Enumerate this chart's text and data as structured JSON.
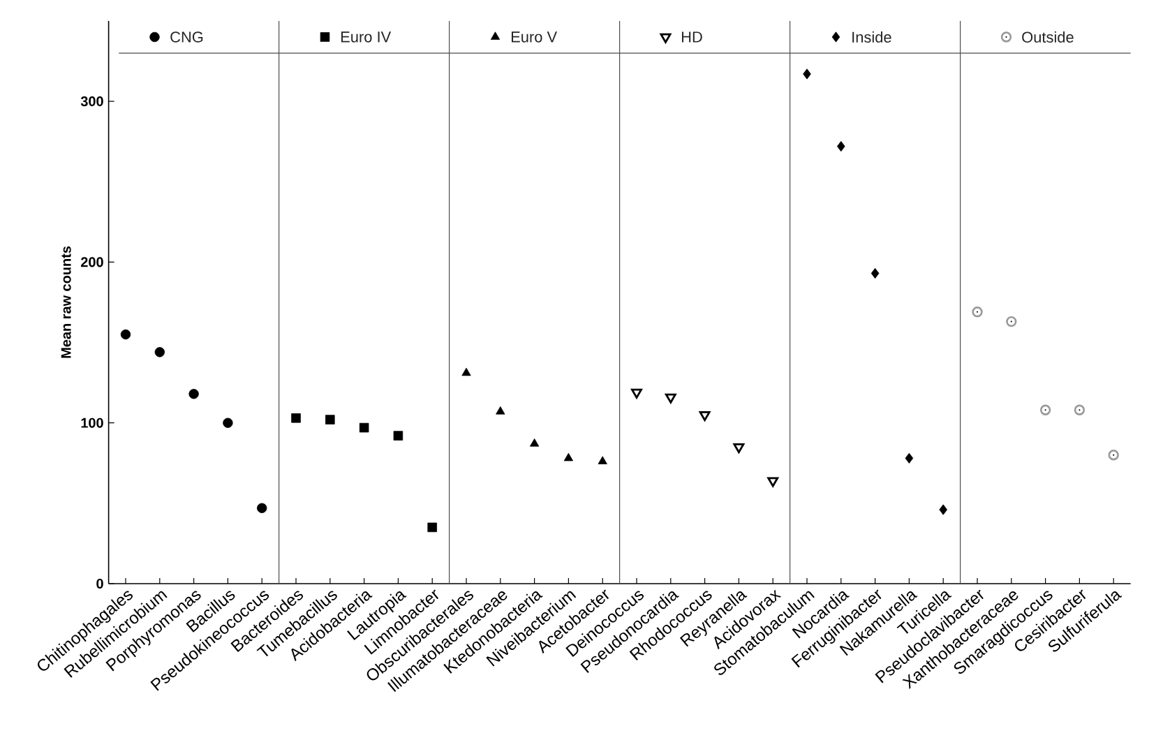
{
  "chart_data": {
    "type": "scatter",
    "ylabel": "Mean raw counts",
    "categories": [
      "Chitinophagales",
      "Rubellimicrobium",
      "Porphyromonas",
      "Bacillus",
      "Pseudokineococcus",
      "Bacteroides",
      "Tumebacillus",
      "Acidobacteria",
      "Lautropia",
      "Limnobacter",
      "Obscuribacterales",
      "Illumatobacteraceae",
      "Ktedonobacteria",
      "Niveibacterium",
      "Acetobacter",
      "Deinococcus",
      "Pseudonocardia",
      "Rhodococcus",
      "Reyranella",
      "Acidovorax",
      "Stomatobaculum",
      "Nocardia",
      "Ferruginibacter",
      "Nakamurella",
      "Turicella",
      "Pseudoclavibacter",
      "Xanthobacteraceae",
      "Smaragdicoccus",
      "Cesiribacter",
      "Sulfuriferula"
    ],
    "series": [
      {
        "name": "CNG",
        "color": "#000000",
        "marker": "circle",
        "values": [
          155,
          144,
          118,
          100,
          47,
          null,
          null,
          null,
          null,
          null,
          null,
          null,
          null,
          null,
          null,
          null,
          null,
          null,
          null,
          null,
          null,
          null,
          null,
          null,
          null,
          null,
          null,
          null,
          null,
          null
        ]
      },
      {
        "name": "Euro IV",
        "color": "#000000",
        "marker": "square",
        "values": [
          null,
          null,
          null,
          null,
          null,
          103,
          102,
          97,
          92,
          35,
          null,
          null,
          null,
          null,
          null,
          null,
          null,
          null,
          null,
          null,
          null,
          null,
          null,
          null,
          null,
          null,
          null,
          null,
          null,
          null
        ]
      },
      {
        "name": "Euro V",
        "color": "#000000",
        "marker": "triangle",
        "values": [
          null,
          null,
          null,
          null,
          null,
          null,
          null,
          null,
          null,
          null,
          131,
          107,
          87,
          78,
          76,
          null,
          null,
          null,
          null,
          null,
          null,
          null,
          null,
          null,
          null,
          null,
          null,
          null,
          null,
          null
        ]
      },
      {
        "name": "HD",
        "color": "#000000",
        "marker": "triangle-down-open",
        "values": [
          null,
          null,
          null,
          null,
          null,
          null,
          null,
          null,
          null,
          null,
          null,
          null,
          null,
          null,
          null,
          119,
          116,
          105,
          85,
          64,
          null,
          null,
          null,
          null,
          null,
          null,
          null,
          null,
          null,
          null
        ]
      },
      {
        "name": "Inside",
        "color": "#000000",
        "marker": "diamond",
        "values": [
          null,
          null,
          null,
          null,
          null,
          null,
          null,
          null,
          null,
          null,
          null,
          null,
          null,
          null,
          null,
          null,
          null,
          null,
          null,
          null,
          317,
          272,
          193,
          78,
          46,
          null,
          null,
          null,
          null,
          null
        ]
      },
      {
        "name": "Outside",
        "color": "#999999",
        "marker": "circle-open",
        "values": [
          null,
          null,
          null,
          null,
          null,
          null,
          null,
          null,
          null,
          null,
          null,
          null,
          null,
          null,
          null,
          null,
          null,
          null,
          null,
          null,
          null,
          null,
          null,
          null,
          null,
          169,
          163,
          108,
          108,
          80
        ]
      }
    ],
    "ylim": [
      0,
      350
    ],
    "yticks": [
      0,
      100,
      200,
      300
    ],
    "legend": "top",
    "grid": false
  }
}
